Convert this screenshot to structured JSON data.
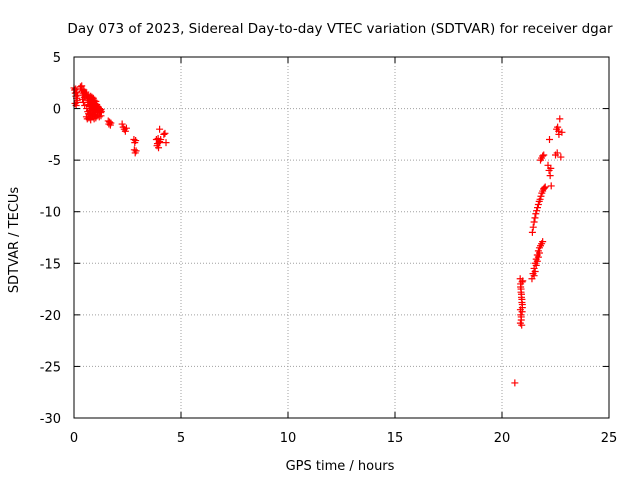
{
  "chart_data": {
    "type": "scatter",
    "title": "Day 073 of 2023, Sidereal Day-to-day VTEC variation (SDTVAR) for receiver dgar",
    "xlabel": "GPS time / hours",
    "ylabel": "SDTVAR / TECUs",
    "xlim": [
      0,
      25
    ],
    "ylim": [
      -30,
      5
    ],
    "xticks": [
      0,
      5,
      10,
      15,
      20,
      25
    ],
    "yticks": [
      -30,
      -25,
      -20,
      -15,
      -10,
      -5,
      0,
      5
    ],
    "xtick_labels": [
      "0",
      "5",
      "10",
      "15",
      "20",
      "25"
    ],
    "ytick_labels": [
      "-30",
      "-25",
      "-20",
      "-15",
      "-10",
      "-5",
      "0",
      "5"
    ],
    "grid": true,
    "marker": "plus",
    "color": "#ff0000",
    "series": [
      {
        "name": "SDTVAR",
        "x": [
          0.0,
          0.03,
          0.06,
          0.09,
          0.12,
          0.15,
          0.05,
          0.1,
          0.14,
          0.08,
          0.12,
          0.16,
          0.3,
          0.35,
          0.38,
          0.42,
          0.45,
          0.48,
          0.4,
          0.44,
          0.5,
          0.36,
          0.46,
          0.52,
          0.55,
          0.58,
          0.6,
          0.62,
          0.65,
          0.68,
          0.7,
          0.72,
          0.74,
          0.76,
          0.78,
          0.8,
          0.82,
          0.84,
          0.86,
          0.88,
          0.9,
          0.92,
          0.94,
          0.96,
          0.98,
          1.0,
          1.02,
          1.04,
          1.06,
          1.08,
          1.1,
          1.12,
          1.14,
          1.16,
          1.18,
          1.2,
          1.22,
          1.24,
          1.26,
          1.28,
          0.6,
          0.64,
          0.68,
          0.72,
          0.76,
          0.8,
          0.84,
          0.88,
          0.92,
          0.96,
          1.0,
          1.04,
          0.66,
          0.7,
          0.74,
          0.78,
          0.82,
          0.86,
          0.9,
          0.94,
          0.98,
          1.02,
          1.06,
          1.1,
          0.58,
          0.62,
          0.7,
          0.78,
          0.86,
          0.94,
          1.02,
          1.1,
          1.18,
          1.26,
          1.6,
          1.63,
          1.66,
          1.7,
          1.72,
          2.25,
          2.3,
          2.35,
          2.4,
          2.45,
          2.8,
          2.84,
          2.88,
          2.82,
          2.86,
          2.9,
          3.85,
          3.9,
          3.95,
          4.0,
          3.88,
          3.93,
          3.98,
          4.05,
          4.2,
          4.25,
          4.3,
          4.0,
          20.6,
          20.85,
          20.87,
          20.89,
          20.91,
          20.93,
          20.95,
          20.86,
          20.88,
          20.9,
          20.92,
          20.94,
          20.87,
          20.89,
          20.91,
          20.93,
          20.95,
          20.97,
          20.86,
          20.9,
          20.94,
          21.4,
          21.45,
          21.5,
          21.55,
          21.6,
          21.65,
          21.7,
          21.75,
          21.8,
          21.85,
          21.9,
          21.5,
          21.55,
          21.6,
          21.65,
          21.7,
          21.75,
          21.42,
          21.46,
          21.5,
          21.54,
          21.58,
          21.62,
          21.66,
          21.7,
          21.74,
          21.78,
          21.82,
          21.86,
          21.9,
          21.94,
          21.98,
          22.02,
          21.8,
          21.85,
          21.9,
          21.95,
          22.15,
          22.2,
          22.25,
          22.3,
          22.22,
          22.28,
          22.5,
          22.55,
          22.6,
          22.65,
          22.7,
          22.75,
          22.8,
          22.58,
          22.66
        ],
        "y": [
          2.0,
          1.8,
          1.5,
          1.2,
          1.0,
          0.8,
          0.5,
          0.3,
          0.6,
          1.9,
          1.6,
          1.3,
          2.1,
          1.9,
          1.7,
          1.5,
          1.3,
          1.1,
          0.9,
          0.6,
          0.3,
          2.2,
          1.8,
          1.4,
          1.6,
          1.4,
          1.2,
          1.0,
          0.8,
          0.6,
          0.4,
          0.2,
          0.0,
          -0.2,
          0.5,
          0.7,
          0.9,
          1.1,
          0.3,
          0.1,
          -0.1,
          0.6,
          0.4,
          0.2,
          0.0,
          -0.2,
          0.3,
          0.1,
          -0.1,
          0.2,
          0.0,
          -0.2,
          0.1,
          -0.1,
          -0.3,
          0.0,
          -0.2,
          -0.4,
          -0.1,
          -0.3,
          0.0,
          -0.3,
          -0.5,
          -0.2,
          -0.6,
          -0.4,
          -0.7,
          -0.5,
          -0.3,
          -0.6,
          -0.4,
          -0.7,
          1.3,
          1.0,
          0.8,
          1.2,
          0.9,
          0.7,
          1.0,
          0.8,
          0.5,
          0.7,
          0.4,
          0.2,
          -0.8,
          -1.0,
          -0.9,
          -1.1,
          -0.8,
          -1.0,
          -0.9,
          -0.6,
          -0.8,
          -0.7,
          -1.2,
          -1.5,
          -1.3,
          -1.6,
          -1.4,
          -1.5,
          -1.8,
          -2.0,
          -2.2,
          -1.9,
          -3.0,
          -3.3,
          -3.1,
          -4.0,
          -4.3,
          -4.1,
          -3.0,
          -3.4,
          -3.8,
          -3.2,
          -3.6,
          -2.9,
          -3.3,
          -3.0,
          -2.5,
          -2.4,
          -3.3,
          -2.0,
          -26.6,
          -16.5,
          -17.0,
          -17.5,
          -18.0,
          -18.5,
          -19.0,
          -19.5,
          -20.0,
          -20.5,
          -21.0,
          -16.8,
          -17.3,
          -17.8,
          -18.3,
          -18.8,
          -19.3,
          -16.7,
          -20.8,
          -20.2,
          -19.7,
          -16.5,
          -16.0,
          -15.5,
          -15.0,
          -14.6,
          -14.2,
          -13.8,
          -13.5,
          -13.3,
          -13.1,
          -12.9,
          -16.2,
          -15.8,
          -15.2,
          -14.8,
          -14.4,
          -14.0,
          -12.0,
          -11.5,
          -11.0,
          -10.6,
          -10.2,
          -9.9,
          -9.6,
          -9.3,
          -9.0,
          -8.8,
          -8.5,
          -8.2,
          -8.0,
          -7.8,
          -7.7,
          -7.6,
          -5.0,
          -4.8,
          -4.6,
          -4.5,
          -5.5,
          -6.0,
          -6.5,
          -7.5,
          -3.0,
          -5.8,
          -4.5,
          -2.0,
          -1.8,
          -2.2,
          -1.0,
          -4.7,
          -2.3,
          -4.3,
          -2.5
        ]
      }
    ]
  }
}
